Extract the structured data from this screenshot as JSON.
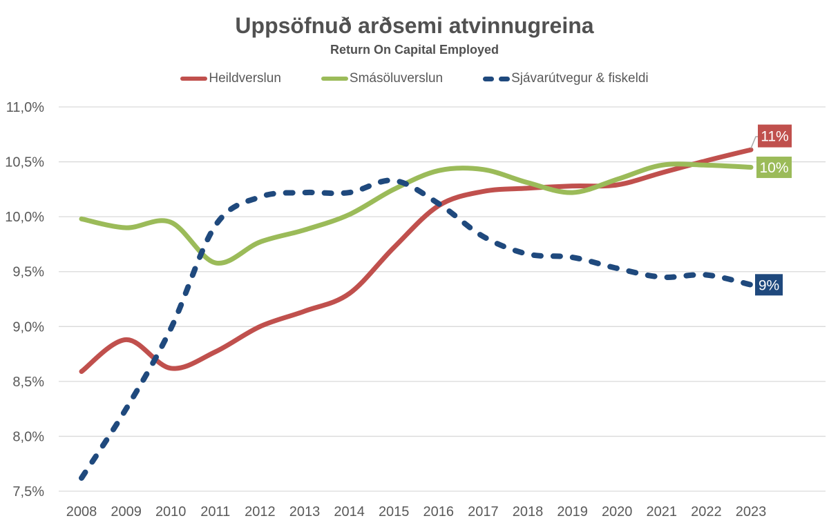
{
  "title": "Uppsöfnuð arðsemi atvinnugreina",
  "subtitle": "Return On Capital Employed",
  "colors": {
    "heildverslun": "#C0504D",
    "smasoluverslun": "#9BBB59",
    "sjavarutvegur": "#1F497D",
    "gridline": "#D9D9D9",
    "axis_text": "#595959",
    "title_text": "#515151",
    "leader_line": "#A6A6A6",
    "label_text": "#FFFFFF"
  },
  "chart_data": {
    "type": "line",
    "x": [
      2008,
      2009,
      2010,
      2011,
      2012,
      2013,
      2014,
      2015,
      2016,
      2017,
      2018,
      2019,
      2020,
      2021,
      2022,
      2023
    ],
    "series": [
      {
        "name": "Heildverslun",
        "color": "#C0504D",
        "style": "solid",
        "end_label": "11%",
        "values": [
          8.59,
          8.88,
          8.62,
          8.77,
          9.0,
          9.14,
          9.3,
          9.72,
          10.1,
          10.23,
          10.26,
          10.28,
          10.29,
          10.4,
          10.51,
          10.61
        ]
      },
      {
        "name": "Smásöluverslun",
        "color": "#9BBB59",
        "style": "solid",
        "end_label": "10%",
        "values": [
          9.98,
          9.9,
          9.95,
          9.58,
          9.77,
          9.88,
          10.02,
          10.25,
          10.42,
          10.43,
          10.31,
          10.22,
          10.34,
          10.47,
          10.47,
          10.45
        ]
      },
      {
        "name": "Sjávarútvegur & fiskeldi",
        "color": "#1F497D",
        "style": "dashed",
        "end_label": "9%",
        "values": [
          7.62,
          8.25,
          8.98,
          9.92,
          10.18,
          10.22,
          10.22,
          10.33,
          10.12,
          9.82,
          9.66,
          9.63,
          9.53,
          9.45,
          9.47,
          9.38
        ]
      }
    ],
    "ylim": [
      7.5,
      11.0
    ],
    "ytick_step": 0.5,
    "ytick_labels": [
      "7,5%",
      "8,0%",
      "8,5%",
      "9,0%",
      "9,5%",
      "10,0%",
      "10,5%",
      "11,0%"
    ],
    "decimal_separator": ",",
    "grid": true,
    "legend_position": "top"
  }
}
